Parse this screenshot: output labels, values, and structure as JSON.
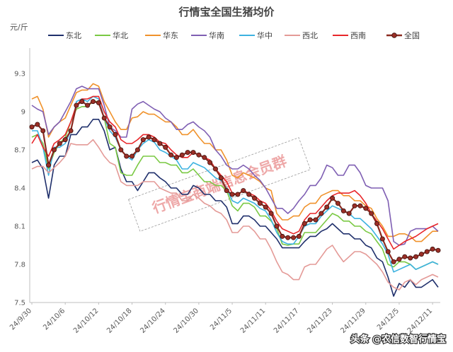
{
  "chart_data": {
    "type": "line",
    "title": "行情宝全国生猪均价",
    "unit_label": "元/斤",
    "xlabel": "",
    "ylabel": "",
    "ylim": [
      7.5,
      9.5
    ],
    "yticks": [
      7.5,
      7.8,
      8.1,
      8.4,
      8.7,
      9,
      9.3
    ],
    "x": [
      "24/9/30",
      "24/10/1",
      "24/10/2",
      "24/10/3",
      "24/10/4",
      "24/10/5",
      "24/10/6",
      "24/10/7",
      "24/10/8",
      "24/10/9",
      "24/10/10",
      "24/10/11",
      "24/10/12",
      "24/10/13",
      "24/10/14",
      "24/10/15",
      "24/10/16",
      "24/10/17",
      "24/10/18",
      "24/10/19",
      "24/10/20",
      "24/10/21",
      "24/10/22",
      "24/10/23",
      "24/10/24",
      "24/10/25",
      "24/10/26",
      "24/10/27",
      "24/10/28",
      "24/10/29",
      "24/10/30",
      "24/10/31",
      "24/11/1",
      "24/11/2",
      "24/11/3",
      "24/11/4",
      "24/11/5",
      "24/11/6",
      "24/11/7",
      "24/11/8",
      "24/11/9",
      "24/11/10",
      "24/11/11",
      "24/11/12",
      "24/11/13",
      "24/11/14",
      "24/11/15",
      "24/11/16",
      "24/11/17",
      "24/11/18",
      "24/11/19",
      "24/11/20",
      "24/11/21",
      "24/11/22",
      "24/11/23",
      "24/11/24",
      "24/11/25",
      "24/11/26",
      "24/11/27",
      "24/11/28",
      "24/11/29",
      "24/11/30",
      "24/12/1",
      "24/12/2",
      "24/12/3",
      "24/12/4",
      "24/12/5",
      "24/12/6",
      "24/12/7",
      "24/12/8",
      "24/12/9",
      "24/12/10",
      "24/12/11",
      "24/12/12"
    ],
    "xtick_labels": [
      "24/9/30",
      "24/10/6",
      "24/10/12",
      "24/10/18",
      "24/10/24",
      "24/10/30",
      "24/11/5",
      "24/11/11",
      "24/11/17",
      "24/11/23",
      "24/11/29",
      "24/12/5",
      "24/12/11"
    ],
    "series": [
      {
        "name": "东北",
        "color": "#1f2f6b",
        "values": [
          8.6,
          8.62,
          8.55,
          8.32,
          8.58,
          8.65,
          8.65,
          8.82,
          8.82,
          8.88,
          8.88,
          8.94,
          8.94,
          8.85,
          8.7,
          8.72,
          8.55,
          8.45,
          8.45,
          8.38,
          8.45,
          8.52,
          8.52,
          8.48,
          8.45,
          8.4,
          8.4,
          8.35,
          8.35,
          8.42,
          8.4,
          8.35,
          8.35,
          8.3,
          8.3,
          8.25,
          8.12,
          8.12,
          8.18,
          8.18,
          8.15,
          8.1,
          8.1,
          8.05,
          8.0,
          7.93,
          7.93,
          7.93,
          7.93,
          7.98,
          8.02,
          8.02,
          8.06,
          8.08,
          8.12,
          8.08,
          8.04,
          8.04,
          8.0,
          8.0,
          7.95,
          7.93,
          7.85,
          7.82,
          7.7,
          7.55,
          7.65,
          7.62,
          7.68,
          7.62,
          7.62,
          7.65,
          7.68,
          7.62
        ]
      },
      {
        "name": "华北",
        "color": "#7ac943",
        "values": [
          8.8,
          8.82,
          8.75,
          8.55,
          8.68,
          8.75,
          8.8,
          8.92,
          9.02,
          9.04,
          9.04,
          9.08,
          9.08,
          8.95,
          8.75,
          8.72,
          8.52,
          8.5,
          8.5,
          8.58,
          8.65,
          8.65,
          8.65,
          8.6,
          8.6,
          8.58,
          8.58,
          8.52,
          8.52,
          8.55,
          8.5,
          8.45,
          8.45,
          8.42,
          8.42,
          8.38,
          8.26,
          8.22,
          8.28,
          8.28,
          8.25,
          8.18,
          8.18,
          8.14,
          8.08,
          7.96,
          7.95,
          7.96,
          7.96,
          8.05,
          8.05,
          8.05,
          8.1,
          8.15,
          8.2,
          8.18,
          8.14,
          8.14,
          8.1,
          8.1,
          8.06,
          8.04,
          7.98,
          7.92,
          7.8,
          7.78,
          7.82,
          7.82,
          7.8,
          7.76,
          7.78,
          7.8,
          7.82,
          7.8
        ]
      },
      {
        "name": "华东",
        "color": "#f0922b",
        "values": [
          9.1,
          9.12,
          9.02,
          8.8,
          8.88,
          8.92,
          8.95,
          9.05,
          9.15,
          9.17,
          9.17,
          9.22,
          9.2,
          9.08,
          9.0,
          8.92,
          8.86,
          8.86,
          8.95,
          8.96,
          9.0,
          8.98,
          8.98,
          8.95,
          8.92,
          8.92,
          8.88,
          8.82,
          8.82,
          8.86,
          8.8,
          8.75,
          8.75,
          8.7,
          8.7,
          8.62,
          8.5,
          8.48,
          8.52,
          8.5,
          8.48,
          8.45,
          8.4,
          8.38,
          8.2,
          8.15,
          8.15,
          8.18,
          8.18,
          8.25,
          8.28,
          8.28,
          8.34,
          8.36,
          8.38,
          8.38,
          8.34,
          8.34,
          8.3,
          8.3,
          8.26,
          8.24,
          8.16,
          8.1,
          8.02,
          8.02,
          8.04,
          8.04,
          8.02,
          7.98,
          7.98,
          8.02,
          8.06,
          8.06
        ]
      },
      {
        "name": "华南",
        "color": "#7f5fb3",
        "values": [
          9.05,
          9.02,
          9.0,
          8.82,
          8.88,
          8.92,
          9.0,
          9.08,
          9.18,
          9.2,
          9.18,
          9.18,
          9.18,
          9.05,
          8.88,
          8.85,
          8.8,
          8.8,
          9.02,
          9.06,
          9.08,
          9.05,
          9.02,
          9.0,
          8.95,
          8.92,
          8.86,
          8.86,
          8.9,
          8.92,
          8.88,
          8.85,
          8.8,
          8.7,
          8.65,
          8.58,
          8.55,
          8.55,
          8.58,
          8.55,
          8.5,
          8.46,
          8.4,
          8.32,
          8.24,
          8.24,
          8.2,
          8.24,
          8.3,
          8.35,
          8.42,
          8.42,
          8.48,
          8.58,
          8.56,
          8.5,
          8.5,
          8.58,
          8.58,
          8.52,
          8.42,
          8.4,
          8.4,
          8.4,
          8.3,
          7.98,
          7.95,
          7.96,
          8.06,
          8.08,
          8.08,
          8.08,
          8.1,
          8.06
        ]
      },
      {
        "name": "华中",
        "color": "#3db2e0",
        "values": [
          8.85,
          8.85,
          8.72,
          8.5,
          8.72,
          8.72,
          8.75,
          8.85,
          9.08,
          9.1,
          9.08,
          9.12,
          9.1,
          8.95,
          8.85,
          8.8,
          8.7,
          8.65,
          8.62,
          8.7,
          8.75,
          8.78,
          8.76,
          8.7,
          8.68,
          8.65,
          8.62,
          8.55,
          8.55,
          8.6,
          8.58,
          8.56,
          8.52,
          8.48,
          8.46,
          8.4,
          8.3,
          8.28,
          8.32,
          8.3,
          8.28,
          8.24,
          8.22,
          8.15,
          8.05,
          7.98,
          7.96,
          7.96,
          8.02,
          8.1,
          8.12,
          8.12,
          8.18,
          8.22,
          8.26,
          8.24,
          8.22,
          8.2,
          8.16,
          8.16,
          8.12,
          8.08,
          8.02,
          7.96,
          7.88,
          7.74,
          7.76,
          7.78,
          7.8,
          7.76,
          7.78,
          7.8,
          7.82,
          7.8
        ]
      },
      {
        "name": "西北",
        "color": "#e49a97",
        "values": [
          8.55,
          8.57,
          8.57,
          8.52,
          8.56,
          8.6,
          8.65,
          8.75,
          8.74,
          8.74,
          8.74,
          8.78,
          8.72,
          8.65,
          8.6,
          8.58,
          8.45,
          8.42,
          8.42,
          8.42,
          8.45,
          8.45,
          8.45,
          8.4,
          8.38,
          8.36,
          8.36,
          8.3,
          8.3,
          8.35,
          8.32,
          8.28,
          8.26,
          8.22,
          8.2,
          8.15,
          8.05,
          8.05,
          8.1,
          8.1,
          8.06,
          8.0,
          8.0,
          7.92,
          7.82,
          7.74,
          7.72,
          7.68,
          7.68,
          7.78,
          7.8,
          7.8,
          7.86,
          7.92,
          7.95,
          7.88,
          7.82,
          7.86,
          7.9,
          7.9,
          7.88,
          7.84,
          7.8,
          7.74,
          7.66,
          7.62,
          7.6,
          7.66,
          7.68,
          7.64,
          7.68,
          7.7,
          7.72,
          7.7
        ]
      },
      {
        "name": "西南",
        "color": "#e8262a",
        "values": [
          8.75,
          8.82,
          8.72,
          8.65,
          8.75,
          8.78,
          8.82,
          8.92,
          9.05,
          9.1,
          9.1,
          9.12,
          9.12,
          9.0,
          8.92,
          8.88,
          8.78,
          8.75,
          8.75,
          8.78,
          8.82,
          8.82,
          8.8,
          8.76,
          8.75,
          8.7,
          8.66,
          8.64,
          8.64,
          8.68,
          8.66,
          8.64,
          8.62,
          8.55,
          8.5,
          8.45,
          8.36,
          8.35,
          8.38,
          8.36,
          8.34,
          8.3,
          8.28,
          8.22,
          8.14,
          8.08,
          8.06,
          8.04,
          8.06,
          8.15,
          8.2,
          8.2,
          8.25,
          8.3,
          8.34,
          8.36,
          8.36,
          8.36,
          8.38,
          8.34,
          8.28,
          8.2,
          8.14,
          8.08,
          8.0,
          7.92,
          7.95,
          7.98,
          8.0,
          8.02,
          8.05,
          8.08,
          8.1,
          8.12
        ]
      },
      {
        "name": "全国",
        "color": "#8b2a20",
        "marker": true,
        "values": [
          8.88,
          8.9,
          8.85,
          8.58,
          8.7,
          8.75,
          8.78,
          8.85,
          9.05,
          9.08,
          9.05,
          9.08,
          9.07,
          8.95,
          8.88,
          8.82,
          8.7,
          8.65,
          8.65,
          8.7,
          8.78,
          8.8,
          8.78,
          8.75,
          8.72,
          8.66,
          8.64,
          8.66,
          8.68,
          8.68,
          8.66,
          8.64,
          8.6,
          8.55,
          8.48,
          8.38,
          8.35,
          8.35,
          8.38,
          8.35,
          8.32,
          8.28,
          8.25,
          8.2,
          8.1,
          8.02,
          8.01,
          8.01,
          8.02,
          8.12,
          8.15,
          8.15,
          8.2,
          8.25,
          8.32,
          8.28,
          8.22,
          8.2,
          8.26,
          8.26,
          8.24,
          8.2,
          8.12,
          8.0,
          7.9,
          7.82,
          7.84,
          7.86,
          7.85,
          7.86,
          7.88,
          7.9,
          7.92,
          7.91
        ]
      }
    ],
    "legend_position": "top",
    "grid": false
  },
  "watermark": {
    "text": "行情宝商端信息会员群"
  },
  "credit": {
    "text": "头条 @农信数智行情宝"
  }
}
